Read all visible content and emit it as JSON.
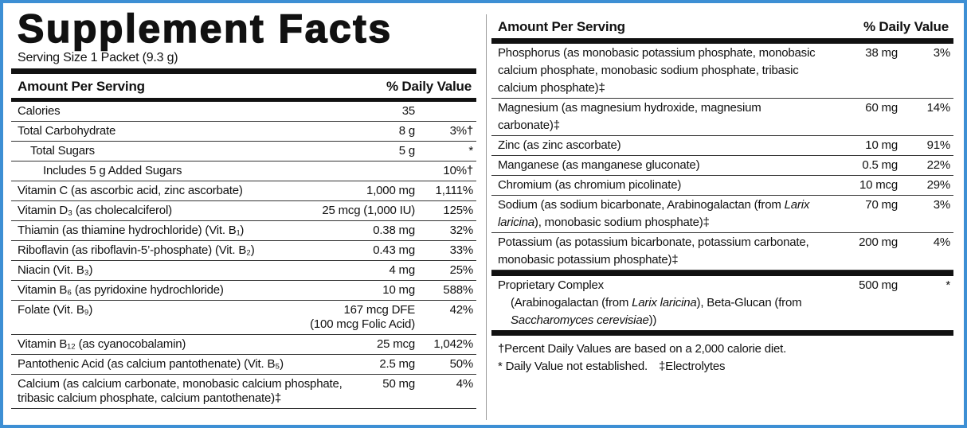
{
  "left": {
    "title": "Supplement Facts",
    "serving_size": "Serving Size 1 Packet (9.3 g)",
    "header": {
      "amount_per_serving": "Amount Per Serving",
      "daily_value": "% Daily Value"
    },
    "rows": [
      {
        "name": "Calories",
        "amount": "35"
      },
      {
        "name": "Total Carbohydrate",
        "amount": "8 g",
        "dv": "3%†",
        "children": [
          {
            "name": "Total Sugars",
            "amount": "5 g",
            "dv": "*",
            "children": [
              {
                "name": "Includes 5 g Added Sugars",
                "dv": "10%†"
              }
            ]
          }
        ]
      },
      {
        "name": "Vitamin C (as ascorbic acid, zinc ascorbate)",
        "amount": "1,000 mg",
        "dv": "1,111%"
      },
      {
        "name": "Vitamin D₃ (as cholecalciferol)",
        "amount": "25 mcg (1,000 IU)",
        "dv": "125%"
      },
      {
        "name": "Thiamin (as thiamine hydrochloride) (Vit. B₁)",
        "amount": "0.38 mg",
        "dv": "32%"
      },
      {
        "name": "Riboflavin (as riboflavin-5’-phosphate) (Vit. B₂)",
        "amount": "0.43 mg",
        "dv": "33%"
      },
      {
        "name": "Niacin (Vit. B₃)",
        "amount": "4 mg",
        "dv": "25%"
      },
      {
        "name": "Vitamin B₆ (as pyridoxine hydrochloride)",
        "amount": "10 mg",
        "dv": "588%"
      },
      {
        "name": "Folate (Vit. B₉)",
        "amount": "167 mcg DFE",
        "amount_note": "(100 mcg Folic Acid)",
        "dv": "42%"
      },
      {
        "name": "Vitamin B₁₂ (as cyanocobalamin)",
        "amount": "25 mcg",
        "dv": "1,042%"
      },
      {
        "name": "Pantothenic Acid (as calcium pantothenate) (Vit. B₅)",
        "amount": "2.5 mg",
        "dv": "50%"
      },
      {
        "name": "Calcium (as calcium carbonate, monobasic calcium phosphate, tribasic calcium phosphate, calcium pantothenate)‡",
        "amount": "50 mg",
        "dv": "4%"
      }
    ]
  },
  "right": {
    "header": {
      "amount_per_serving": "Amount Per Serving",
      "daily_value": "% Daily Value"
    },
    "rows": [
      {
        "name": "Phosphorus (as monobasic potassium phosphate, monobasic calcium phosphate, monobasic sodium phosphate, tribasic calcium phosphate)‡",
        "amount": "38 mg",
        "dv": "3%"
      },
      {
        "name": "Magnesium (as magnesium hydroxide, magnesium carbonate)‡",
        "amount": "60 mg",
        "dv": "14%"
      },
      {
        "name": "Zinc (as zinc ascorbate)",
        "amount": "10 mg",
        "dv": "91%"
      },
      {
        "name": "Manganese (as manganese gluconate)",
        "amount": "0.5 mg",
        "dv": "22%"
      },
      {
        "name": "Chromium (as chromium picolinate)",
        "amount": "10 mcg",
        "dv": "29%"
      },
      {
        "name": [
          {
            "text": "Sodium (as sodium bicarbonate, Arabinogalactan (from "
          },
          {
            "text": "Larix laricina",
            "italic": true
          },
          {
            "text": "), monobasic sodium phosphate)‡"
          }
        ],
        "amount": "70 mg",
        "dv": "3%"
      },
      {
        "name": "Potassium (as potassium bicarbonate, potassium carbonate, monobasic potassium phosphate)‡",
        "amount": "200 mg",
        "dv": "4%"
      }
    ],
    "proprietary": {
      "name": "Proprietary Complex",
      "amount": "500 mg",
      "dv": "*",
      "description": [
        {
          "text": "(Arabinogalactan (from "
        },
        {
          "text": "Larix laricina",
          "italic": true
        },
        {
          "text": "), Beta-Glucan (from "
        },
        {
          "text": "Saccharomyces cerevisiae",
          "italic": true
        },
        {
          "text": "))"
        }
      ]
    },
    "footnotes": [
      [
        "†Percent Daily Values are based on a 2,000 calorie diet."
      ],
      [
        "* Daily Value not established.",
        "‡Electrolytes"
      ]
    ]
  }
}
